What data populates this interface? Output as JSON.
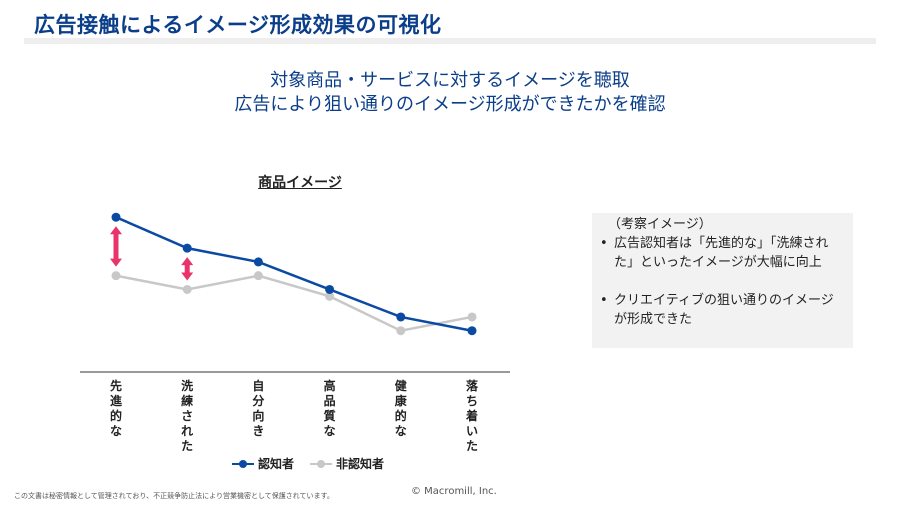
{
  "header": {
    "title": "広告接触によるイメージ形成効果の可視化"
  },
  "subtitle": {
    "line1": "対象商品・サービスに対するイメージを聴取",
    "line2": "広告により狙い通りのイメージ形成ができたかを確認"
  },
  "chart_data": {
    "type": "line",
    "title": "商品イメージ",
    "categories": [
      "先進的な",
      "洗練された",
      "自分向き",
      "高品質な",
      "健康的な",
      "落ち着いた"
    ],
    "series": [
      {
        "name": "認知者",
        "color": "#0b4aa2",
        "values": [
          85,
          76,
          72,
          64,
          56,
          52
        ]
      },
      {
        "name": "非認知者",
        "color": "#c8c8c8",
        "values": [
          68,
          64,
          68,
          62,
          52,
          56
        ]
      }
    ],
    "ylim": [
      40,
      90
    ],
    "annotations": [
      {
        "type": "arrow",
        "category_index": 0,
        "color": "#e8336b"
      },
      {
        "type": "arrow",
        "category_index": 1,
        "color": "#e8336b"
      }
    ],
    "legend_position": "bottom",
    "grid": false
  },
  "insight": {
    "header": "（考察イメージ）",
    "items": [
      "広告認知者は「先進的な」「洗練された」といったイメージが大幅に向上",
      "クリエイティブの狙い通りのイメージが形成できた"
    ]
  },
  "footer": {
    "confidential": "この文書は秘密情報として管理されており、不正競争防止法により営業機密として保護されています。",
    "copyright": "© Macromill, Inc."
  }
}
